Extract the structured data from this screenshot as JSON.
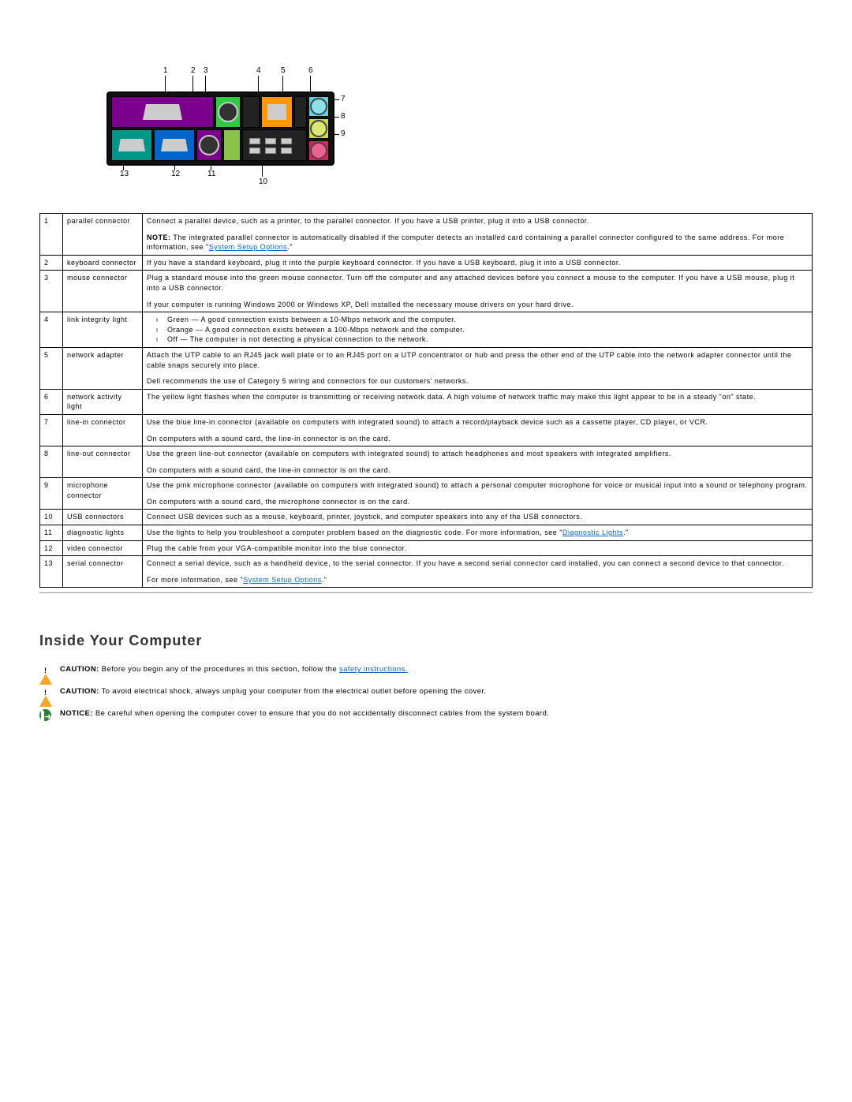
{
  "diagram": {
    "callouts": [
      "1",
      "2",
      "3",
      "4",
      "5",
      "6",
      "7",
      "8",
      "9",
      "10",
      "11",
      "12",
      "13"
    ]
  },
  "table": {
    "rows": [
      {
        "num": "1",
        "label": "parallel connector",
        "desc": [
          {
            "type": "p",
            "text": "Connect a parallel device, such as a printer, to the parallel connector. If you have a USB printer, plug it into a USB connector."
          },
          {
            "type": "note",
            "prefix": "NOTE:",
            "text": " The integrated parallel connector is automatically disabled if the computer detects an installed card containing a parallel connector configured to the same address. For more information, see \"",
            "link": "System Setup Options",
            "after": ".\""
          }
        ]
      },
      {
        "num": "2",
        "label": "keyboard connector",
        "desc": [
          {
            "type": "p",
            "text": "If you have a standard keyboard, plug it into the purple keyboard connector. If you have a USB keyboard, plug it into a USB connector."
          }
        ]
      },
      {
        "num": "3",
        "label": "mouse connector",
        "desc": [
          {
            "type": "p",
            "text": "Plug a standard mouse into the green mouse connector. Turn off the computer and any attached devices before you connect a mouse to the computer. If you have a USB mouse, plug it into a USB connector."
          },
          {
            "type": "p",
            "text": "If your computer is running Windows 2000 or Windows XP, Dell installed the necessary mouse drivers on your hard drive."
          }
        ]
      },
      {
        "num": "4",
        "label": "link integrity light",
        "desc": [
          {
            "type": "ul",
            "items": [
              "Green — A good connection exists between a 10-Mbps network and the computer.",
              "Orange — A good connection exists between a 100-Mbps network and the computer.",
              "Off — The computer is not detecting a physical connection to the network."
            ]
          }
        ]
      },
      {
        "num": "5",
        "label": "network adapter",
        "desc": [
          {
            "type": "p",
            "text": "Attach the UTP cable to an RJ45 jack wall plate or to an RJ45 port on a UTP concentrator or hub and press the other end of the UTP cable into the network adapter connector until the cable snaps securely into place."
          },
          {
            "type": "p",
            "text": "Dell recommends the use of Category 5 wiring and connectors for our customers' networks."
          }
        ]
      },
      {
        "num": "6",
        "label": "network activity light",
        "desc": [
          {
            "type": "p",
            "text": "The yellow light flashes when the computer is transmitting or receiving network data. A high volume of network traffic may make this light appear to be in a steady \"on\" state."
          }
        ]
      },
      {
        "num": "7",
        "label": "line-in connector",
        "desc": [
          {
            "type": "p",
            "text": "Use the blue line-in connector (available on computers with integrated sound) to attach a record/playback device such as a cassette player, CD player, or VCR."
          },
          {
            "type": "p",
            "text": "On computers with a sound card, the line-in connector is on the card."
          }
        ]
      },
      {
        "num": "8",
        "label": "line-out connector",
        "desc": [
          {
            "type": "p",
            "text": "Use the green line-out connector (available on computers with integrated sound) to attach headphones and most speakers with integrated amplifiers."
          },
          {
            "type": "p",
            "text": "On computers with a sound card, the line-in connector is on the card."
          }
        ]
      },
      {
        "num": "9",
        "label": "microphone connector",
        "desc": [
          {
            "type": "p",
            "text": "Use the pink microphone connector (available on computers with integrated sound) to attach a personal computer microphone for voice or musical input into a sound or telephony program."
          },
          {
            "type": "p",
            "text": "On computers with a sound card, the microphone connector is on the card."
          }
        ]
      },
      {
        "num": "10",
        "label": "USB connectors",
        "desc": [
          {
            "type": "p",
            "text": "Connect USB devices such as a mouse, keyboard, printer, joystick, and computer speakers into any of the USB connectors."
          }
        ]
      },
      {
        "num": "11",
        "label": "diagnostic lights",
        "desc": [
          {
            "type": "note",
            "prefix": "",
            "text": "Use the lights to help you troubleshoot a computer problem based on the diagnostic code. For more information, see \"",
            "link": "Diagnostic Lights",
            "after": ".\""
          }
        ]
      },
      {
        "num": "12",
        "label": "video connector",
        "desc": [
          {
            "type": "p",
            "text": "Plug the cable from your VGA-compatible monitor into the blue connector."
          }
        ]
      },
      {
        "num": "13",
        "label": "serial connector",
        "desc": [
          {
            "type": "p",
            "text": "Connect a serial device, such as a handheld device, to the serial connector. If you have a second serial connector card installed, you can connect a second device to that connector."
          },
          {
            "type": "note",
            "prefix": "",
            "text": "For more information, see \"",
            "link": "System Setup Options",
            "after": ".\""
          }
        ]
      }
    ]
  },
  "section_heading": "Inside Your Computer",
  "alerts": [
    {
      "kind": "caution",
      "label": "CAUTION:",
      "text": " Before you begin any of the procedures in this section, follow the ",
      "link": "safety instructions.",
      "after": ""
    },
    {
      "kind": "caution",
      "label": "CAUTION:",
      "text": " To avoid electrical shock, always unplug your computer from the electrical outlet before opening the cover.",
      "link": "",
      "after": ""
    },
    {
      "kind": "notice",
      "label": "NOTICE:",
      "text": " Be careful when opening the computer cover to ensure that you do not accidentally disconnect cables from the system board.",
      "link": "",
      "after": ""
    }
  ]
}
